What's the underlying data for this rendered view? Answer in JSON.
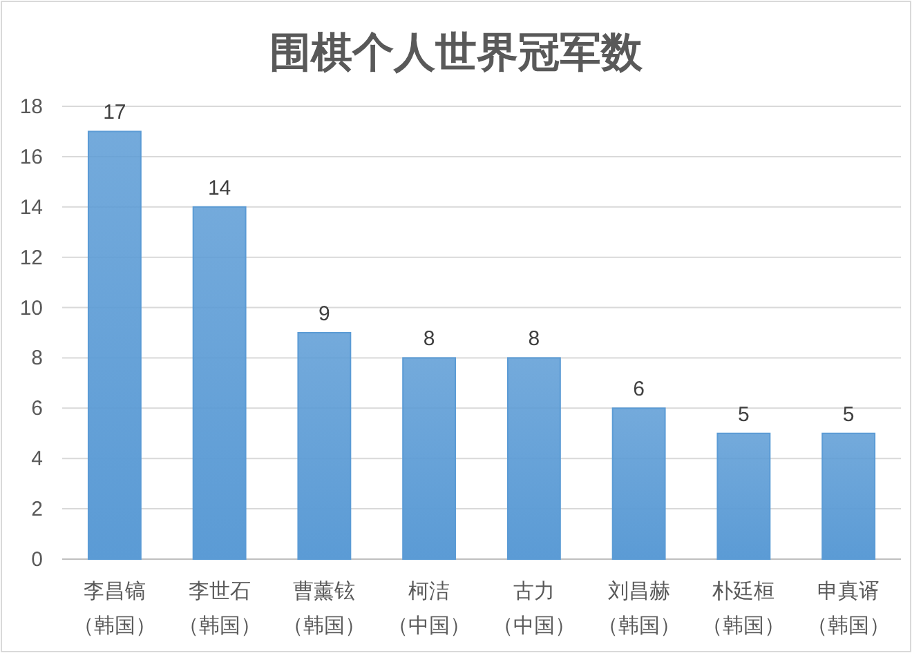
{
  "chart_data": {
    "type": "bar",
    "title": "围棋个人世界冠军数",
    "categories": [
      "李昌镐（韩国）",
      "李世石（韩国）",
      "曹薰铉（韩国）",
      "柯洁（中国）",
      "古力（中国）",
      "刘昌赫（韩国）",
      "朴廷桓（韩国）",
      "申真谞（韩国）"
    ],
    "values": [
      17,
      14,
      9,
      8,
      8,
      6,
      5,
      5
    ],
    "color": "#5b9bd5",
    "ylim": [
      0,
      18
    ],
    "yticks": [
      0,
      2,
      4,
      6,
      8,
      10,
      12,
      14,
      16,
      18
    ],
    "grid": "y",
    "data_labels": true
  }
}
